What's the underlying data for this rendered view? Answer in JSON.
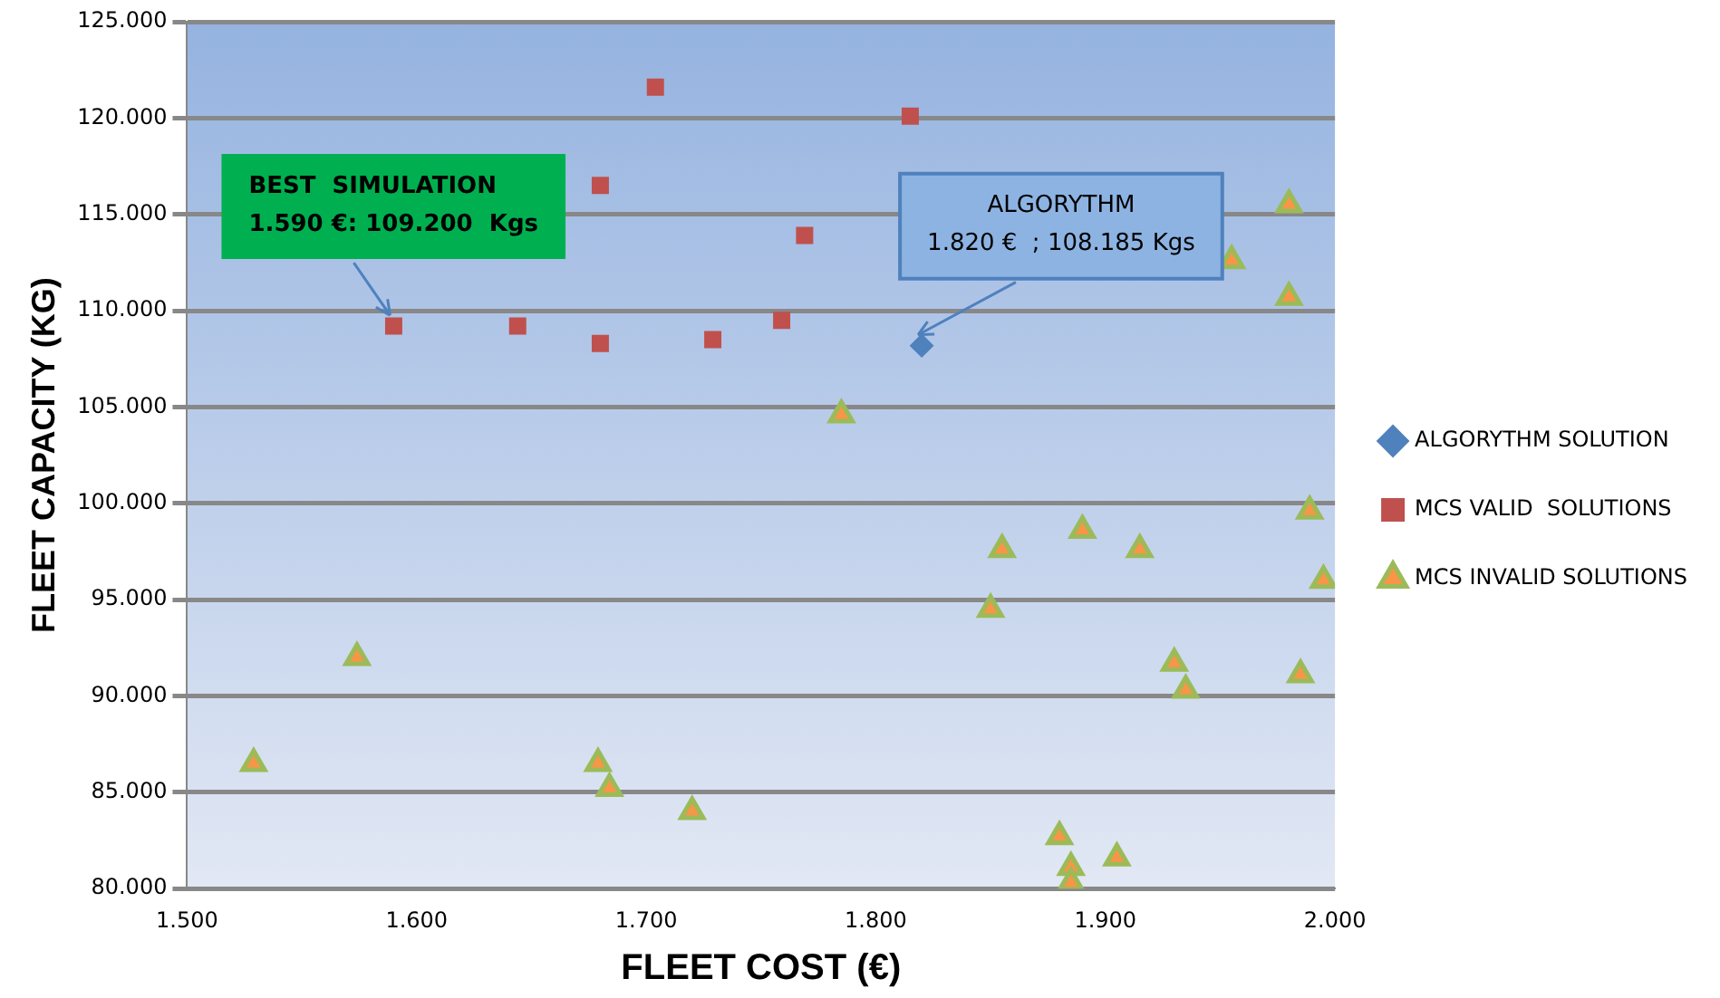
{
  "chart_data": {
    "type": "scatter",
    "xlabel": "FLEET COST (€)",
    "ylabel": "FLEET CAPACITY (KG)",
    "xlim": [
      1500,
      2000
    ],
    "xticks": [
      {
        "value": 1500,
        "label": "1.500"
      },
      {
        "value": 1600,
        "label": "1.600"
      },
      {
        "value": 1700,
        "label": "1.700"
      },
      {
        "value": 1800,
        "label": "1.800"
      },
      {
        "value": 1900,
        "label": "1.900"
      },
      {
        "value": 2000,
        "label": "2.000"
      }
    ],
    "ylim": [
      80000,
      125000
    ],
    "yticks": [
      {
        "value": 80000,
        "label": "80.000"
      },
      {
        "value": 85000,
        "label": "85.000"
      },
      {
        "value": 90000,
        "label": "90.000"
      },
      {
        "value": 95000,
        "label": "95.000"
      },
      {
        "value": 100000,
        "label": "100.000"
      },
      {
        "value": 105000,
        "label": "105.000"
      },
      {
        "value": 110000,
        "label": "110.000"
      },
      {
        "value": 115000,
        "label": "115.000"
      },
      {
        "value": 120000,
        "label": "120.000"
      },
      {
        "value": 125000,
        "label": "125.000"
      }
    ],
    "grid": "y",
    "legend": "right",
    "series": [
      {
        "name": "ALGORYTHM SOLUTION",
        "color": "#4f81bd",
        "marker": "diamond",
        "x": [
          1820
        ],
        "values": [
          108185
        ]
      },
      {
        "name": "MCS VALID  SOLUTIONS",
        "color": "#c0504d",
        "marker": "square",
        "x": [
          1704,
          1680,
          1590,
          1644,
          1680,
          1729,
          1769,
          1759,
          1815
        ],
        "values": [
          121600,
          116500,
          109200,
          109200,
          108300,
          108500,
          113900,
          109500,
          120100
        ]
      },
      {
        "name": "MCS INVALID SOLUTIONS",
        "color": "#f79646",
        "marker": "triangle",
        "x": [
          1529,
          1574,
          1679,
          1684,
          1720,
          1785,
          1855,
          1850,
          1890,
          1915,
          1930,
          1935,
          1985,
          1995,
          1980,
          1955,
          1980,
          1880,
          1885,
          1885,
          1905,
          1989
        ],
        "values": [
          86500,
          92000,
          86500,
          85200,
          84000,
          104600,
          97600,
          94500,
          98600,
          97600,
          91700,
          90300,
          91100,
          96000,
          115500,
          112600,
          110700,
          82700,
          81100,
          80300,
          81600,
          99600
        ]
      }
    ],
    "annotations": [
      {
        "text": "BEST  SIMULATION\n1.590 €: 109.200  Kgs",
        "x": 1590,
        "y": 109200
      },
      {
        "text": "ALGORYTHM\n1.820 €  ; 108.185 Kgs",
        "x": 1820,
        "y": 108185
      }
    ]
  }
}
